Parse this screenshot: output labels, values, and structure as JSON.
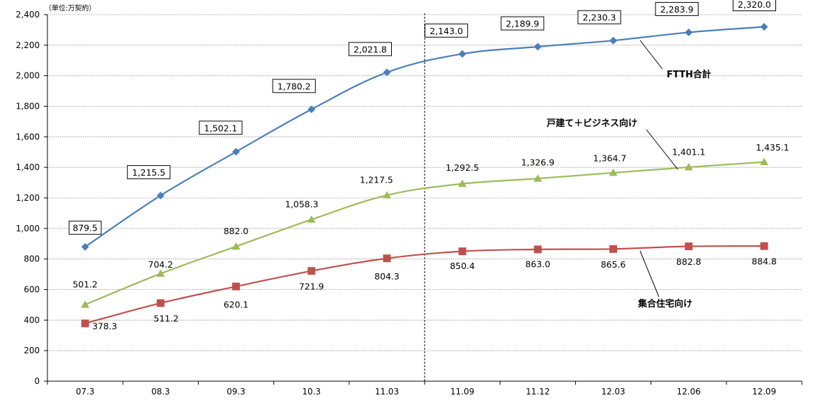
{
  "chart_data": {
    "type": "line",
    "unit_label": "（単位:万契約）",
    "categories": [
      "07.3",
      "08.3",
      "09.3",
      "10.3",
      "11.03",
      "11.09",
      "11.12",
      "12.03",
      "12.06",
      "12.09"
    ],
    "ylim": [
      0,
      2400
    ],
    "yticks": [
      0,
      200,
      400,
      600,
      800,
      1000,
      1200,
      1400,
      1600,
      1800,
      2000,
      2200,
      2400
    ],
    "ytick_labels": [
      "0",
      "200",
      "400",
      "600",
      "800",
      "1,000",
      "1,200",
      "1,400",
      "1,600",
      "1,800",
      "2,000",
      "2,200",
      "2,400"
    ],
    "grid": true,
    "divider_between": [
      "11.03",
      "11.09"
    ],
    "series": [
      {
        "name": "FTTH合計",
        "color": "#4a7ebb",
        "marker": "diamond",
        "values": [
          879.5,
          1215.5,
          1502.1,
          1780.2,
          2021.8,
          2143.0,
          2189.9,
          2230.3,
          2283.9,
          2320.0
        ],
        "labels": [
          "879.5",
          "1,215.5",
          "1,502.1",
          "1,780.2",
          "2,021.8",
          "2,143.0",
          "2,189.9",
          "2,230.3",
          "2,283.9",
          "2,320.0"
        ],
        "label_style": "boxed"
      },
      {
        "name": "戸建て＋ビジネス向け",
        "color": "#9bbb59",
        "marker": "triangle",
        "values": [
          501.2,
          704.2,
          882.0,
          1058.3,
          1217.5,
          1292.5,
          1326.9,
          1364.7,
          1401.1,
          1435.1
        ],
        "labels": [
          "501.2",
          "704.2",
          "882.0",
          "1,058.3",
          "1,217.5",
          "1,292.5",
          "1,326.9",
          "1,364.7",
          "1,401.1",
          "1,435.1"
        ],
        "label_style": "plain"
      },
      {
        "name": "集合住宅向け",
        "color": "#c0504d",
        "marker": "square",
        "values": [
          378.3,
          511.2,
          620.1,
          721.9,
          804.3,
          850.4,
          863.0,
          865.6,
          882.8,
          884.8
        ],
        "labels": [
          "378.3",
          "511.2",
          "620.1",
          "721.9",
          "804.3",
          "850.4",
          "863.0",
          "865.6",
          "882.8",
          "884.8"
        ],
        "label_style": "plain"
      }
    ]
  }
}
